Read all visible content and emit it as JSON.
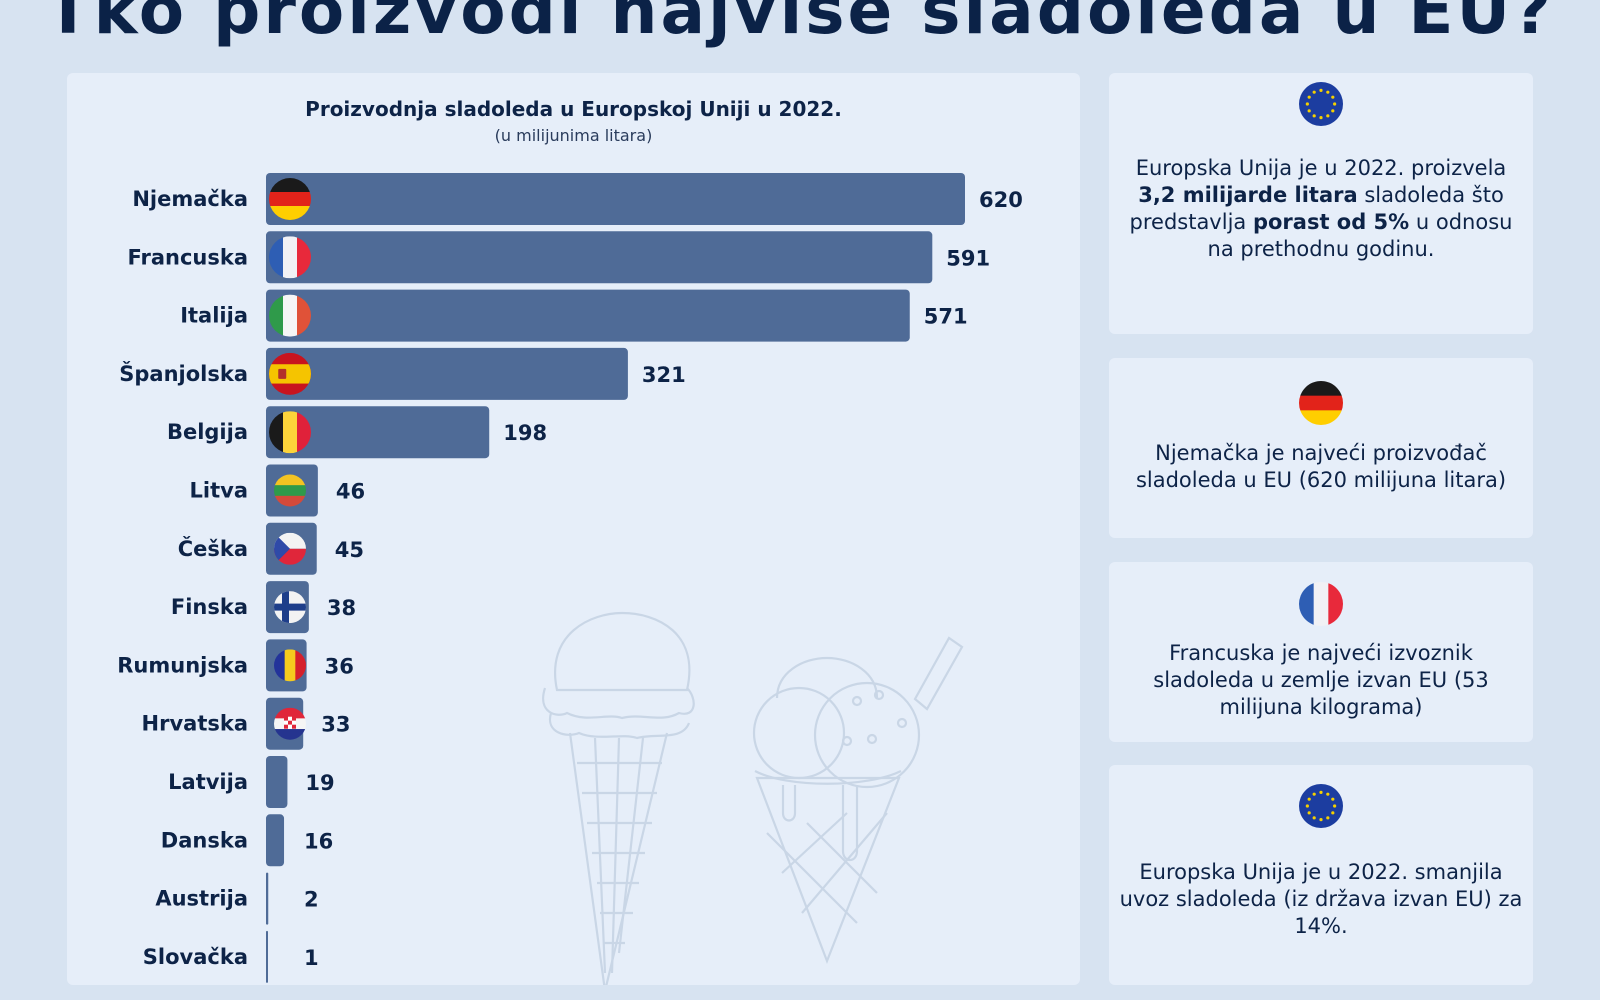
{
  "page": {
    "title": "Tko proizvodi najviše sladoleda u EU?",
    "background": "#d7e3f1"
  },
  "chart_data": {
    "type": "bar",
    "orientation": "horizontal",
    "title": "Proizvodnja sladoleda u Europskoj Uniji u 2022.",
    "subtitle": "(u milijunima litara)",
    "xlabel": "",
    "ylabel": "",
    "categories": [
      "Njemačka",
      "Francuska",
      "Italija",
      "Španjolska",
      "Belgija",
      "Litva",
      "Češka",
      "Finska",
      "Rumunjska",
      "Hrvatska",
      "Latvija",
      "Danska",
      "Austrija",
      "Slovačka"
    ],
    "values": [
      620,
      591,
      571,
      321,
      198,
      46,
      45,
      38,
      36,
      33,
      19,
      16,
      2,
      1
    ],
    "flags": [
      "de",
      "fr",
      "it",
      "es",
      "be",
      "lt",
      "cz",
      "fi",
      "ro",
      "hr",
      "",
      "",
      "",
      ""
    ],
    "xlim": [
      0,
      620
    ],
    "grid": false,
    "legend": "none",
    "bar_color": "#4f6b97",
    "label_color": "#0d2347"
  },
  "cards": [
    {
      "icon": "eu-flag-icon",
      "segments": [
        {
          "text": "Europska Unija je u 2022. proizvela ",
          "bold": false
        },
        {
          "text": "3,2 milijarde litara",
          "bold": true
        },
        {
          "text": " sladoleda što predstavlja ",
          "bold": false
        },
        {
          "text": "porast od 5%",
          "bold": true
        },
        {
          "text": " u odnosu na prethodnu godinu.",
          "bold": false
        }
      ]
    },
    {
      "icon": "germany-flag-icon",
      "segments": [
        {
          "text": "Njemačka je najveći proizvođač sladoleda u EU (620 milijuna litara)",
          "bold": false
        }
      ]
    },
    {
      "icon": "france-flag-icon",
      "segments": [
        {
          "text": "Francuska je najveći izvoznik sladoleda u zemlje izvan EU (53 milijuna kilograma)",
          "bold": false
        }
      ]
    },
    {
      "icon": "eu-flag-icon",
      "segments": [
        {
          "text": "Europska Unija je u 2022. smanjila uvoz sladoleda (iz država izvan EU) za 14%.",
          "bold": false
        }
      ]
    }
  ]
}
